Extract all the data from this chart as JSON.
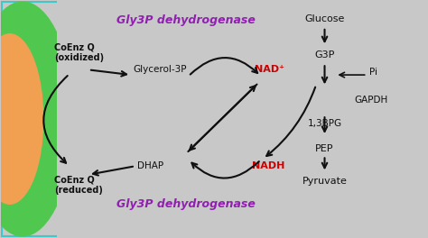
{
  "bg_color": "#c8c8c8",
  "border_color": "#40c8c8",
  "left_bg_green": "#50c850",
  "left_bg_orange": "#f0a050",
  "title_top": "Gly3P dehydrogenase",
  "title_bottom": "Gly3P dehydrogenase",
  "title_color": "#9020b0",
  "label_coenz_ox": "CoEnz Q\n(oxidized)",
  "label_coenz_red": "CoEnz Q\n(reduced)",
  "label_glycerol": "Glycerol-3P",
  "label_dhap": "DHAP",
  "label_nad": "NAD⁺",
  "label_nadh": "NADH",
  "label_glucose": "Glucose",
  "label_g3p": "G3P",
  "label_pi": "Pi",
  "label_gapdh": "GAPDH",
  "label_bpg": "1,3BPG",
  "label_pep": "PEP",
  "label_pyruvate": "Pyruvate",
  "nad_color": "#cc0000",
  "nadh_color": "#cc0000",
  "arrow_color": "#101010",
  "text_color": "#101010",
  "purple_color": "#9020b0"
}
